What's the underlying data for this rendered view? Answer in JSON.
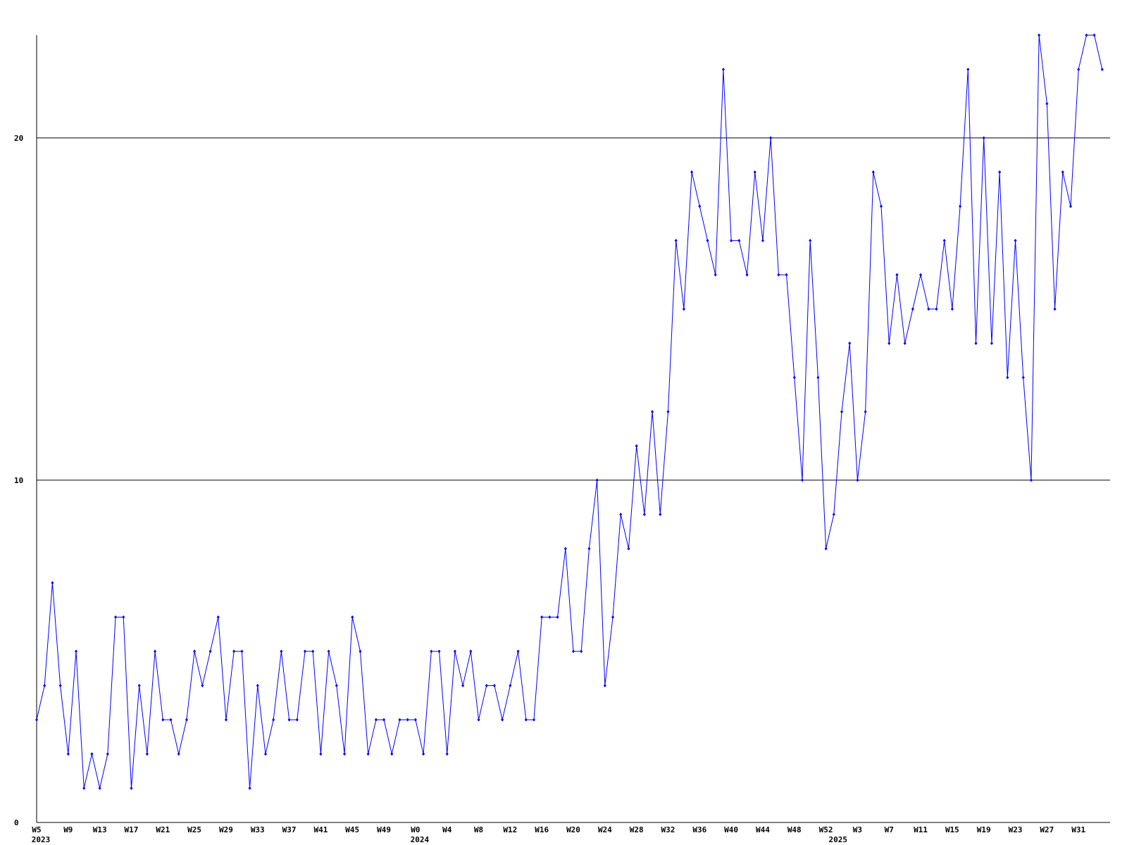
{
  "chart_data": {
    "type": "line",
    "ylim": [
      0,
      23
    ],
    "yticks": [
      0,
      10,
      20
    ],
    "grid": true,
    "categories": [
      "W5",
      null,
      null,
      null,
      "W9",
      null,
      null,
      null,
      "W13",
      null,
      null,
      null,
      "W17",
      null,
      null,
      null,
      "W21",
      null,
      null,
      null,
      "W25",
      null,
      null,
      null,
      "W29",
      null,
      null,
      null,
      "W33",
      null,
      null,
      null,
      "W37",
      null,
      null,
      null,
      "W41",
      null,
      null,
      null,
      "W45",
      null,
      null,
      null,
      "W49",
      null,
      null,
      null,
      "W0",
      null,
      null,
      null,
      "W4",
      null,
      null,
      null,
      "W8",
      null,
      null,
      null,
      "W12",
      null,
      null,
      null,
      "W16",
      null,
      null,
      null,
      "W20",
      null,
      null,
      null,
      "W24",
      null,
      null,
      null,
      "W28",
      null,
      null,
      null,
      "W32",
      null,
      null,
      null,
      "W36",
      null,
      null,
      null,
      "W40",
      null,
      null,
      null,
      "W44",
      null,
      null,
      null,
      "W48",
      null,
      null,
      null,
      "W52",
      null,
      null,
      null,
      "W3",
      null,
      null,
      null,
      "W7",
      null,
      null,
      null,
      "W11",
      null,
      null,
      null,
      "W15",
      null,
      null,
      null,
      "W19",
      null,
      null,
      null,
      "W23",
      null,
      null,
      null,
      "W27",
      null,
      null,
      null,
      "W31",
      null,
      null,
      null
    ],
    "year_labels": [
      "2023",
      null,
      null,
      null,
      null,
      null,
      null,
      null,
      null,
      null,
      null,
      null,
      null,
      null,
      null,
      null,
      null,
      null,
      null,
      null,
      null,
      null,
      null,
      null,
      null,
      null,
      null,
      null,
      null,
      null,
      null,
      null,
      null,
      null,
      null,
      null,
      null,
      null,
      null,
      null,
      null,
      null,
      null,
      null,
      null,
      null,
      null,
      null,
      "2024",
      null,
      null,
      null,
      null,
      null,
      null,
      null,
      null,
      null,
      null,
      null,
      null,
      null,
      null,
      null,
      null,
      null,
      null,
      null,
      null,
      null,
      null,
      null,
      null,
      null,
      null,
      null,
      null,
      null,
      null,
      null,
      null,
      null,
      null,
      null,
      null,
      null,
      null,
      null,
      null,
      null,
      null,
      null,
      null,
      null,
      null,
      null,
      null,
      null,
      null,
      null,
      null,
      "2025",
      null,
      null,
      null,
      null,
      null,
      null,
      null,
      null,
      null,
      null,
      null,
      null,
      null,
      null,
      null,
      null,
      null,
      null,
      null,
      null,
      null,
      null,
      null,
      null,
      null,
      null,
      null,
      null,
      null,
      null,
      null,
      null,
      null,
      null
    ],
    "series": [
      {
        "color": "#0000ff",
        "values": [
          3,
          4,
          7,
          4,
          2,
          5,
          1,
          2,
          1,
          2,
          6,
          6,
          1,
          4,
          2,
          5,
          3,
          3,
          2,
          3,
          5,
          4,
          5,
          6,
          3,
          5,
          5,
          1,
          4,
          2,
          3,
          5,
          3,
          3,
          5,
          5,
          2,
          5,
          4,
          2,
          6,
          5,
          2,
          3,
          3,
          2,
          3,
          3,
          3,
          2,
          5,
          5,
          2,
          5,
          4,
          5,
          3,
          4,
          4,
          3,
          4,
          5,
          3,
          3,
          6,
          6,
          6,
          8,
          5,
          5,
          8,
          10,
          4,
          6,
          9,
          8,
          11,
          9,
          12,
          9,
          12,
          17,
          15,
          19,
          18,
          17,
          16,
          22,
          17,
          17,
          16,
          19,
          17,
          20,
          16,
          16,
          13,
          10,
          17,
          13,
          8,
          9,
          12,
          14,
          10,
          12,
          19,
          18,
          14,
          16,
          14,
          15,
          16,
          15,
          15,
          17,
          15,
          18,
          22,
          14,
          20,
          14,
          19,
          13,
          17,
          13,
          10,
          23,
          21,
          15,
          19,
          18,
          22,
          23,
          23,
          22
        ]
      }
    ]
  }
}
